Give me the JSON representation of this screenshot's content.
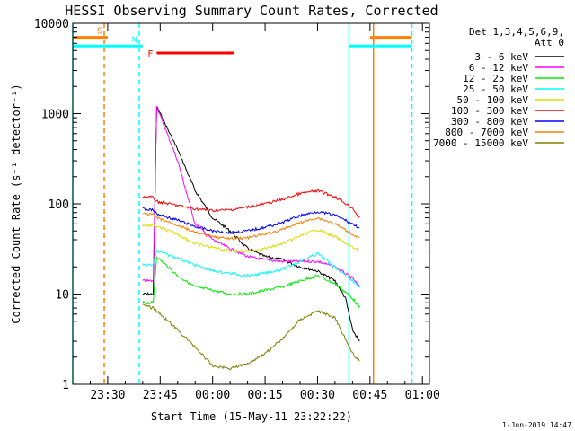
{
  "chart_data": {
    "type": "line",
    "title": "HESSI Observing Summary Count Rates, Corrected",
    "xlabel": "Start Time (15-May-11 23:22:22)",
    "ylabel": "Corrected Count Rate (s⁻¹ detector⁻¹)",
    "footer": "1-Jun-2019 14:47",
    "scale_y": "log",
    "ylim": [
      1,
      10000
    ],
    "xlim": [
      "23:20",
      "01:02"
    ],
    "yticks": [
      {
        "value": 1,
        "label": "1"
      },
      {
        "value": 10,
        "label": "10"
      },
      {
        "value": 100,
        "label": "100"
      },
      {
        "value": 1000,
        "label": "1000"
      },
      {
        "value": 10000,
        "label": "10000"
      }
    ],
    "xticks": [
      {
        "value": "23:30",
        "label": "23:30"
      },
      {
        "value": "23:45",
        "label": "23:45"
      },
      {
        "value": "00:00",
        "label": "00:00"
      },
      {
        "value": "00:15",
        "label": "00:15"
      },
      {
        "value": "00:30",
        "label": "00:30"
      },
      {
        "value": "00:45",
        "label": "00:45"
      },
      {
        "value": "01:00",
        "label": "01:00"
      }
    ],
    "legend": {
      "position": "right",
      "header1": "Det 1,3,4,5,6,9,",
      "header2": "Att 0"
    },
    "series": [
      {
        "name": "3 - 6 keV",
        "color": "#000000",
        "points": [
          [
            "23:40",
            10
          ],
          [
            "23:43",
            10
          ],
          [
            "23:44",
            1200
          ],
          [
            "23:50",
            400
          ],
          [
            "23:55",
            140
          ],
          [
            "00:00",
            70
          ],
          [
            "00:05",
            50
          ],
          [
            "00:10",
            32
          ],
          [
            "00:15",
            26
          ],
          [
            "00:20",
            24
          ],
          [
            "00:25",
            20
          ],
          [
            "00:30",
            18
          ],
          [
            "00:35",
            14
          ],
          [
            "00:38",
            9
          ],
          [
            "00:40",
            4
          ],
          [
            "00:42",
            3
          ]
        ]
      },
      {
        "name": "6 - 12 keV",
        "color": "#ff00ff",
        "points": [
          [
            "23:40",
            14
          ],
          [
            "23:43",
            14
          ],
          [
            "23:44",
            1200
          ],
          [
            "23:50",
            300
          ],
          [
            "23:55",
            60
          ],
          [
            "00:00",
            40
          ],
          [
            "00:05",
            32
          ],
          [
            "00:10",
            26
          ],
          [
            "00:15",
            24
          ],
          [
            "00:20",
            23
          ],
          [
            "00:25",
            23
          ],
          [
            "00:30",
            23
          ],
          [
            "00:35",
            20
          ],
          [
            "00:40",
            15
          ],
          [
            "00:42",
            12
          ]
        ]
      },
      {
        "name": "12 - 25 keV",
        "color": "#00ee00",
        "points": [
          [
            "23:40",
            8
          ],
          [
            "23:43",
            8
          ],
          [
            "23:44",
            26
          ],
          [
            "23:50",
            16
          ],
          [
            "23:55",
            12
          ],
          [
            "00:00",
            11
          ],
          [
            "00:05",
            10
          ],
          [
            "00:10",
            10
          ],
          [
            "00:15",
            11
          ],
          [
            "00:20",
            12
          ],
          [
            "00:25",
            14
          ],
          [
            "00:30",
            16
          ],
          [
            "00:35",
            13
          ],
          [
            "00:40",
            9
          ],
          [
            "00:42",
            7
          ]
        ]
      },
      {
        "name": "25 - 50 keV",
        "color": "#00ffff",
        "points": [
          [
            "23:40",
            21
          ],
          [
            "23:43",
            21
          ],
          [
            "23:44",
            30
          ],
          [
            "23:50",
            25
          ],
          [
            "23:55",
            21
          ],
          [
            "00:00",
            18
          ],
          [
            "00:05",
            17
          ],
          [
            "00:10",
            16
          ],
          [
            "00:15",
            17
          ],
          [
            "00:20",
            19
          ],
          [
            "00:25",
            23
          ],
          [
            "00:30",
            28
          ],
          [
            "00:35",
            20
          ],
          [
            "00:40",
            14
          ],
          [
            "00:42",
            12
          ]
        ]
      },
      {
        "name": "50 - 100 keV",
        "color": "#dddd00",
        "points": [
          [
            "23:40",
            58
          ],
          [
            "23:43",
            58
          ],
          [
            "23:44",
            56
          ],
          [
            "23:50",
            46
          ],
          [
            "23:55",
            36
          ],
          [
            "00:00",
            33
          ],
          [
            "00:05",
            30
          ],
          [
            "00:10",
            30
          ],
          [
            "00:15",
            32
          ],
          [
            "00:20",
            36
          ],
          [
            "00:25",
            44
          ],
          [
            "00:30",
            52
          ],
          [
            "00:35",
            43
          ],
          [
            "00:40",
            33
          ],
          [
            "00:42",
            30
          ]
        ]
      },
      {
        "name": "100 - 300 keV",
        "color": "#ff0000",
        "points": [
          [
            "23:40",
            120
          ],
          [
            "23:43",
            118
          ],
          [
            "23:44",
            106
          ],
          [
            "23:50",
            96
          ],
          [
            "23:55",
            88
          ],
          [
            "00:00",
            84
          ],
          [
            "00:05",
            86
          ],
          [
            "00:10",
            92
          ],
          [
            "00:15",
            100
          ],
          [
            "00:20",
            112
          ],
          [
            "00:25",
            130
          ],
          [
            "00:30",
            140
          ],
          [
            "00:35",
            120
          ],
          [
            "00:40",
            90
          ],
          [
            "00:42",
            70
          ]
        ]
      },
      {
        "name": "300 - 800 keV",
        "color": "#0000ff",
        "points": [
          [
            "23:40",
            88
          ],
          [
            "23:43",
            85
          ],
          [
            "23:44",
            77
          ],
          [
            "23:50",
            66
          ],
          [
            "23:55",
            56
          ],
          [
            "00:00",
            50
          ],
          [
            "00:05",
            48
          ],
          [
            "00:10",
            50
          ],
          [
            "00:15",
            55
          ],
          [
            "00:20",
            62
          ],
          [
            "00:25",
            74
          ],
          [
            "00:30",
            82
          ],
          [
            "00:35",
            75
          ],
          [
            "00:40",
            60
          ],
          [
            "00:42",
            54
          ]
        ]
      },
      {
        "name": "800 - 7000 keV",
        "color": "#ff7f00",
        "points": [
          [
            "23:40",
            77
          ],
          [
            "23:43",
            76
          ],
          [
            "23:44",
            70
          ],
          [
            "23:50",
            58
          ],
          [
            "23:55",
            48
          ],
          [
            "00:00",
            43
          ],
          [
            "00:05",
            41
          ],
          [
            "00:10",
            42
          ],
          [
            "00:15",
            46
          ],
          [
            "00:20",
            52
          ],
          [
            "00:25",
            62
          ],
          [
            "00:30",
            70
          ],
          [
            "00:35",
            60
          ],
          [
            "00:40",
            46
          ],
          [
            "00:42",
            42
          ]
        ]
      },
      {
        "name": "7000 - 15000 keV",
        "color": "#808000",
        "points": [
          [
            "23:40",
            7.5
          ],
          [
            "23:43",
            7
          ],
          [
            "23:44",
            6.5
          ],
          [
            "23:50",
            4
          ],
          [
            "23:55",
            2.6
          ],
          [
            "00:00",
            1.6
          ],
          [
            "00:05",
            1.5
          ],
          [
            "00:10",
            1.7
          ],
          [
            "00:15",
            2.2
          ],
          [
            "00:20",
            3.2
          ],
          [
            "00:25",
            5.2
          ],
          [
            "00:30",
            6.5
          ],
          [
            "00:35",
            5.5
          ],
          [
            "00:40",
            2.2
          ],
          [
            "00:42",
            1.8
          ]
        ]
      }
    ],
    "flags": [
      {
        "label": "S",
        "color": "#ff7f00",
        "y": 7000,
        "segments": [
          [
            "23:20",
            "23:30"
          ],
          [
            "00:45",
            "00:57"
          ]
        ]
      },
      {
        "label": "N",
        "color": "#00ffff",
        "y": 5600,
        "segments": [
          [
            "23:20",
            "23:40"
          ],
          [
            "00:39",
            "00:57"
          ]
        ]
      },
      {
        "label": "F",
        "color": "#ff0000",
        "y": 4700,
        "segments": [
          [
            "23:44",
            "00:06"
          ]
        ]
      }
    ],
    "vlines": [
      {
        "x": "23:20",
        "color": "#00ffff",
        "dashed": false
      },
      {
        "x": "23:29",
        "color": "#ff7f00",
        "dashed": true
      },
      {
        "x": "23:39",
        "color": "#00ffff",
        "dashed": true
      },
      {
        "x": "00:39",
        "color": "#00ffff",
        "dashed": false
      },
      {
        "x": "00:46",
        "color": "#ff7f00",
        "dashed": false
      },
      {
        "x": "00:57",
        "color": "#00ffff",
        "dashed": true
      }
    ]
  }
}
